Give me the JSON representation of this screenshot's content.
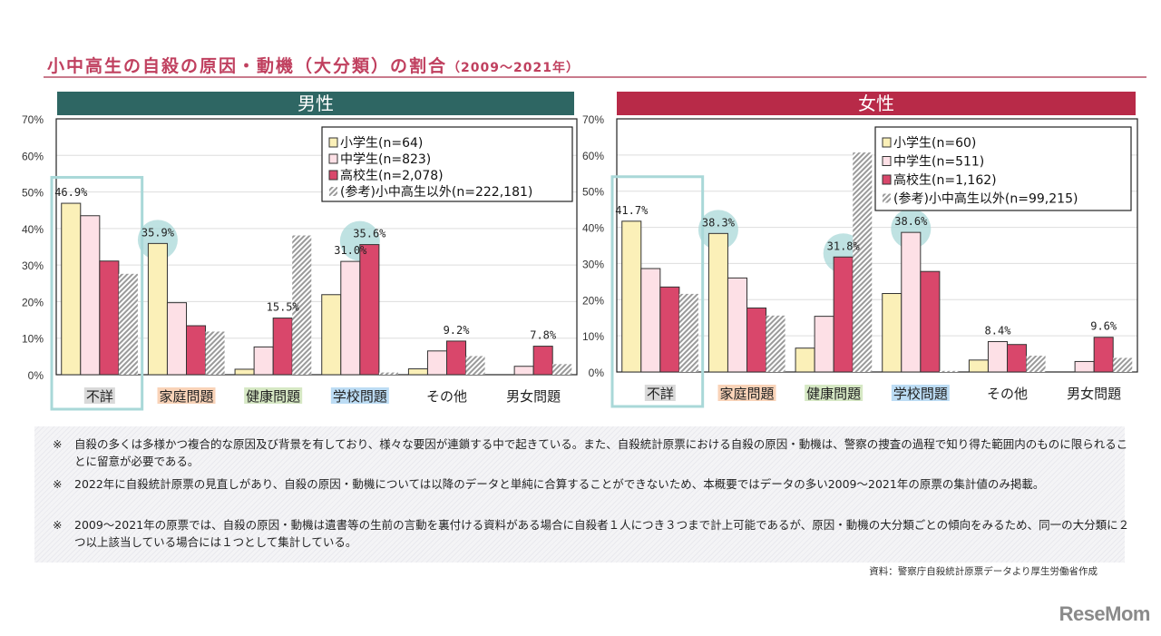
{
  "title": {
    "main": "小中高生の自殺の原因・動機（大分類）の割合",
    "period": "（2009～2021年）"
  },
  "colors": {
    "elementary": "#fbf0b8",
    "junior": "#fde0e6",
    "high": "#d9476b",
    "reference": "#9a9a9a",
    "male_header": "#2e6663",
    "female_header": "#b82a48",
    "highlight": "#a9d8d8"
  },
  "chart_data": [
    {
      "type": "bar",
      "title": "男性",
      "categories": [
        "不詳",
        "家庭問題",
        "健康問題",
        "学校問題",
        "その他",
        "男女問題"
      ],
      "ylim": [
        0,
        70
      ],
      "yticks": [
        "0%",
        "10%",
        "20%",
        "30%",
        "40%",
        "50%",
        "60%",
        "70%"
      ],
      "legend_position": "top-right",
      "series": [
        {
          "name": "小学生(n=64)",
          "values": [
            46.9,
            35.9,
            1.5,
            21.9,
            1.6,
            0
          ]
        },
        {
          "name": "中学生(n=823)",
          "values": [
            43.5,
            19.7,
            7.6,
            31.0,
            6.5,
            2.3
          ]
        },
        {
          "name": "高校生(n=2,078)",
          "values": [
            31.1,
            13.4,
            15.5,
            35.6,
            9.2,
            7.8
          ]
        },
        {
          "name": "(参考)小中高生以外(n=222,181)",
          "values": [
            27.6,
            11.8,
            38.1,
            0.6,
            5.1,
            2.9
          ]
        }
      ],
      "data_labels": [
        {
          "category": "不詳",
          "series": 0,
          "text": "46.9%"
        },
        {
          "category": "家庭問題",
          "series": 0,
          "text": "35.9%"
        },
        {
          "category": "健康問題",
          "series": 2,
          "text": "15.5%"
        },
        {
          "category": "学校問題",
          "series": 1,
          "text": "31.0%"
        },
        {
          "category": "学校問題",
          "series": 2,
          "text": "35.6%"
        },
        {
          "category": "その他",
          "series": 2,
          "text": "9.2%"
        },
        {
          "category": "男女問題",
          "series": 2,
          "text": "7.8%"
        }
      ]
    },
    {
      "type": "bar",
      "title": "女性",
      "categories": [
        "不詳",
        "家庭問題",
        "健康問題",
        "学校問題",
        "その他",
        "男女問題"
      ],
      "ylim": [
        0,
        70
      ],
      "yticks": [
        "0%",
        "10%",
        "20%",
        "30%",
        "40%",
        "50%",
        "60%",
        "70%"
      ],
      "legend_position": "top-right",
      "series": [
        {
          "name": "小学生(n=60)",
          "values": [
            41.7,
            38.3,
            6.6,
            21.7,
            3.3,
            0
          ]
        },
        {
          "name": "中学生(n=511)",
          "values": [
            28.6,
            26.0,
            15.4,
            38.6,
            8.4,
            2.9
          ]
        },
        {
          "name": "高校生(n=1,162)",
          "values": [
            23.5,
            17.7,
            31.8,
            27.8,
            7.6,
            9.6
          ]
        },
        {
          "name": "(参考)小中高生以外(n=99,215)",
          "values": [
            21.6,
            15.6,
            60.7,
            0.3,
            4.5,
            3.9
          ]
        }
      ],
      "data_labels": [
        {
          "category": "不詳",
          "series": 0,
          "text": "41.7%"
        },
        {
          "category": "家庭問題",
          "series": 0,
          "text": "38.3%"
        },
        {
          "category": "健康問題",
          "series": 2,
          "text": "31.8%"
        },
        {
          "category": "学校問題",
          "series": 1,
          "text": "38.6%"
        },
        {
          "category": "その他",
          "series": 1,
          "text": "8.4%"
        },
        {
          "category": "男女問題",
          "series": 2,
          "text": "9.6%"
        }
      ]
    }
  ],
  "notes": [
    {
      "mark": "※",
      "text": "自殺の多くは多様かつ複合的な原因及び背景を有しており、様々な要因が連鎖する中で起きている。また、自殺統計原票における自殺の原因・動機は、警察の捜査の過程で知り得た範囲内のものに限られることに留意が必要である。"
    },
    {
      "mark": "※",
      "text": "2022年に自殺統計原票の見直しがあり、自殺の原因・動機については以降のデータと単純に合算することができないため、本概要ではデータの多い2009～2021年の原票の集計値のみ掲載。"
    },
    {
      "mark": "※",
      "text": "2009～2021年の原票では、自殺の原因・動機は遺書等の生前の言動を裏付ける資料がある場合に自殺者１人につき３つまで計上可能であるが、原因・動機の大分類ごとの傾向をみるため、同一の大分類に２つ以上該当している場合には１つとして集計している。"
    }
  ],
  "source": "資料：警察庁自殺統計原票データより厚生労働省作成",
  "logo": "ReseMom"
}
